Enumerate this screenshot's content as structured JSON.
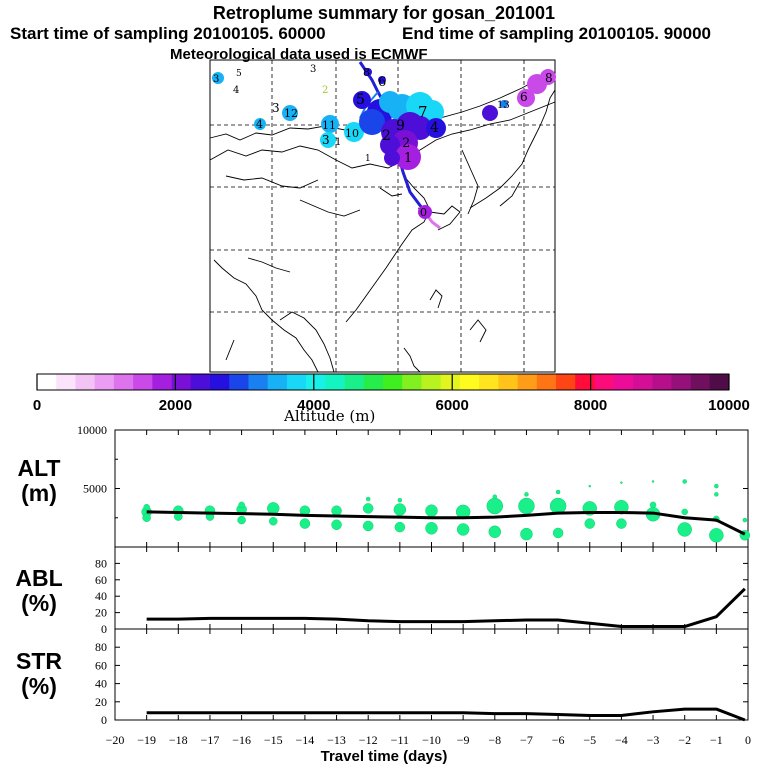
{
  "header": {
    "title": "Retroplume summary for gosan_201001",
    "start_time": "Start time of sampling 20100105. 60000",
    "end_time": "End time of sampling 20100105. 90000",
    "met_data": "Meteorological data used is ECMWF"
  },
  "colorbar": {
    "label": "Altitude (m)",
    "tick_labels": [
      "0",
      "2000",
      "4000",
      "6000",
      "8000",
      "10000"
    ],
    "range": [
      0,
      10000
    ],
    "colors": [
      "#ffffff",
      "#fbe3fb",
      "#f3c3f5",
      "#ea9df2",
      "#de73ee",
      "#c94ae9",
      "#a51fe0",
      "#7a0fd6",
      "#4d0fd8",
      "#2610e0",
      "#1a45ea",
      "#1a7ff0",
      "#17b1f5",
      "#19d7f6",
      "#18f0e8",
      "#12f5c0",
      "#1af08a",
      "#26ec4c",
      "#3fef1f",
      "#82f01f",
      "#b8f21f",
      "#e3f51f",
      "#fffb1e",
      "#ffe41e",
      "#ffc31a",
      "#ff9d19",
      "#ff7516",
      "#ff4514",
      "#ff0c3b",
      "#fc0b7a",
      "#ed0c9a",
      "#d40e97",
      "#b70f8b",
      "#951078",
      "#6f0f5e",
      "#4f0c48"
    ]
  },
  "map_labels": [
    {
      "t": "0",
      "c": "#000000"
    },
    {
      "t": "1",
      "c": "#000000"
    },
    {
      "t": "1",
      "c": "#000000"
    },
    {
      "t": "2",
      "c": "#000000"
    },
    {
      "t": "2",
      "c": "#9acd32"
    },
    {
      "t": "3",
      "c": "#000000"
    },
    {
      "t": "3",
      "c": "#000000"
    },
    {
      "t": "3",
      "c": "#000000"
    },
    {
      "t": "3",
      "c": "#000000"
    },
    {
      "t": "4",
      "c": "#000000"
    },
    {
      "t": "4",
      "c": "#000000"
    },
    {
      "t": "4",
      "c": "#000000"
    },
    {
      "t": "5",
      "c": "#000000"
    },
    {
      "t": "5",
      "c": "#000000"
    },
    {
      "t": "6",
      "c": "#000000"
    },
    {
      "t": "6",
      "c": "#000000"
    },
    {
      "t": "7",
      "c": "#000000"
    },
    {
      "t": "8",
      "c": "#000000"
    },
    {
      "t": "8",
      "c": "#000000"
    },
    {
      "t": "9",
      "c": "#000000"
    },
    {
      "t": "10",
      "c": "#000000"
    },
    {
      "t": "11",
      "c": "#000000"
    },
    {
      "t": "12",
      "c": "#000000"
    },
    {
      "t": "13",
      "c": "#000000"
    },
    {
      "t": "2",
      "c": "#000000"
    },
    {
      "t": "1",
      "c": "#000000"
    }
  ],
  "panel_labels": {
    "alt": "ALT\n(m)",
    "abl": "ABL\n(%)",
    "str": "STR\n(%)"
  },
  "x_axis": {
    "label": "Travel time (days)",
    "tick_labels": [
      "-20",
      "-19",
      "-18",
      "-17",
      "-16",
      "-15",
      "-14",
      "-13",
      "-12",
      "-11",
      "-10",
      "-9",
      "-8",
      "-7",
      "-6",
      "-5",
      "-4",
      "-3",
      "-2",
      "-1",
      "0"
    ],
    "range": [
      -20,
      0
    ]
  },
  "chart_data": [
    {
      "type": "line",
      "title": "ALT",
      "ylabel": "ALT (m)",
      "ylim": [
        0,
        10000
      ],
      "y_tick_labels": [
        "10000",
        "5000"
      ],
      "x": [
        -19,
        -18,
        -17,
        -16,
        -15,
        -14,
        -13,
        -12,
        -11,
        -10,
        -9,
        -8,
        -7,
        -6,
        -5,
        -4,
        -3,
        -2,
        -1,
        -0.1
      ],
      "values": [
        3000,
        2950,
        2900,
        2850,
        2800,
        2700,
        2650,
        2600,
        2550,
        2500,
        2500,
        2550,
        2700,
        2900,
        2950,
        2950,
        2900,
        2500,
        2300,
        1100
      ],
      "scatter_points": [
        {
          "x": -19,
          "y": 3000,
          "s": 5
        },
        {
          "x": -19,
          "y": 2500,
          "s": 4
        },
        {
          "x": -19,
          "y": 3400,
          "s": 3
        },
        {
          "x": -18,
          "y": 3100,
          "s": 5
        },
        {
          "x": -18,
          "y": 2600,
          "s": 4
        },
        {
          "x": -17,
          "y": 3100,
          "s": 5
        },
        {
          "x": -17,
          "y": 2600,
          "s": 4
        },
        {
          "x": -16,
          "y": 3200,
          "s": 5
        },
        {
          "x": -16,
          "y": 2300,
          "s": 4
        },
        {
          "x": -16,
          "y": 3600,
          "s": 3
        },
        {
          "x": -15,
          "y": 3300,
          "s": 6
        },
        {
          "x": -15,
          "y": 2200,
          "s": 4
        },
        {
          "x": -14,
          "y": 3100,
          "s": 5
        },
        {
          "x": -14,
          "y": 2000,
          "s": 5
        },
        {
          "x": -13,
          "y": 3100,
          "s": 5
        },
        {
          "x": -13,
          "y": 1900,
          "s": 5
        },
        {
          "x": -12,
          "y": 3300,
          "s": 5
        },
        {
          "x": -12,
          "y": 1800,
          "s": 5
        },
        {
          "x": -12,
          "y": 4100,
          "s": 2
        },
        {
          "x": -11,
          "y": 3200,
          "s": 6
        },
        {
          "x": -11,
          "y": 1700,
          "s": 5
        },
        {
          "x": -11,
          "y": 4000,
          "s": 2
        },
        {
          "x": -10,
          "y": 3100,
          "s": 6
        },
        {
          "x": -10,
          "y": 1600,
          "s": 6
        },
        {
          "x": -9,
          "y": 3000,
          "s": 7
        },
        {
          "x": -9,
          "y": 1500,
          "s": 6
        },
        {
          "x": -8,
          "y": 3500,
          "s": 8
        },
        {
          "x": -8,
          "y": 1300,
          "s": 6
        },
        {
          "x": -8,
          "y": 4300,
          "s": 2
        },
        {
          "x": -7,
          "y": 3500,
          "s": 8
        },
        {
          "x": -7,
          "y": 1100,
          "s": 6
        },
        {
          "x": -7,
          "y": 4500,
          "s": 2
        },
        {
          "x": -6,
          "y": 3500,
          "s": 8
        },
        {
          "x": -6,
          "y": 1200,
          "s": 5
        },
        {
          "x": -6,
          "y": 4700,
          "s": 2
        },
        {
          "x": -5,
          "y": 3300,
          "s": 7
        },
        {
          "x": -5,
          "y": 2000,
          "s": 5
        },
        {
          "x": -5,
          "y": 5200,
          "s": 1
        },
        {
          "x": -4,
          "y": 3400,
          "s": 7
        },
        {
          "x": -4,
          "y": 2000,
          "s": 5
        },
        {
          "x": -4,
          "y": 5500,
          "s": 1
        },
        {
          "x": -3,
          "y": 2800,
          "s": 7
        },
        {
          "x": -3,
          "y": 3600,
          "s": 3
        },
        {
          "x": -3,
          "y": 5600,
          "s": 1
        },
        {
          "x": -2,
          "y": 1500,
          "s": 7
        },
        {
          "x": -2,
          "y": 3000,
          "s": 3
        },
        {
          "x": -2,
          "y": 5600,
          "s": 2
        },
        {
          "x": -1,
          "y": 1000,
          "s": 7
        },
        {
          "x": -1,
          "y": 2400,
          "s": 3
        },
        {
          "x": -1,
          "y": 4500,
          "s": 2
        },
        {
          "x": -1,
          "y": 5200,
          "s": 2
        },
        {
          "x": -0.1,
          "y": 1000,
          "s": 5
        },
        {
          "x": -0.1,
          "y": 2300,
          "s": 2
        }
      ]
    },
    {
      "type": "line",
      "title": "ABL",
      "ylabel": "ABL (%)",
      "ylim": [
        0,
        100
      ],
      "y_tick_labels": [
        "0",
        "20",
        "40",
        "60",
        "80"
      ],
      "x": [
        -19,
        -18,
        -17,
        -16,
        -15,
        -14,
        -13,
        -12,
        -11,
        -10,
        -9,
        -8,
        -7,
        -6,
        -5,
        -4,
        -3,
        -2,
        -1,
        -0.1
      ],
      "values": [
        12,
        12,
        13,
        13,
        13,
        13,
        12,
        10,
        9,
        9,
        9,
        10,
        11,
        11,
        7,
        3,
        3,
        3,
        15,
        49
      ]
    },
    {
      "type": "line",
      "title": "STR",
      "ylabel": "STR (%)",
      "ylim": [
        0,
        100
      ],
      "y_tick_labels": [
        "0",
        "20",
        "40",
        "60",
        "80"
      ],
      "x": [
        -19,
        -18,
        -17,
        -16,
        -15,
        -14,
        -13,
        -12,
        -11,
        -10,
        -9,
        -8,
        -7,
        -6,
        -5,
        -4,
        -3,
        -2,
        -1,
        -0.1
      ],
      "values": [
        8,
        8,
        8,
        8,
        8,
        8,
        8,
        8,
        8,
        8,
        8,
        7,
        7,
        6,
        5,
        5,
        9,
        12,
        12,
        0
      ]
    }
  ]
}
